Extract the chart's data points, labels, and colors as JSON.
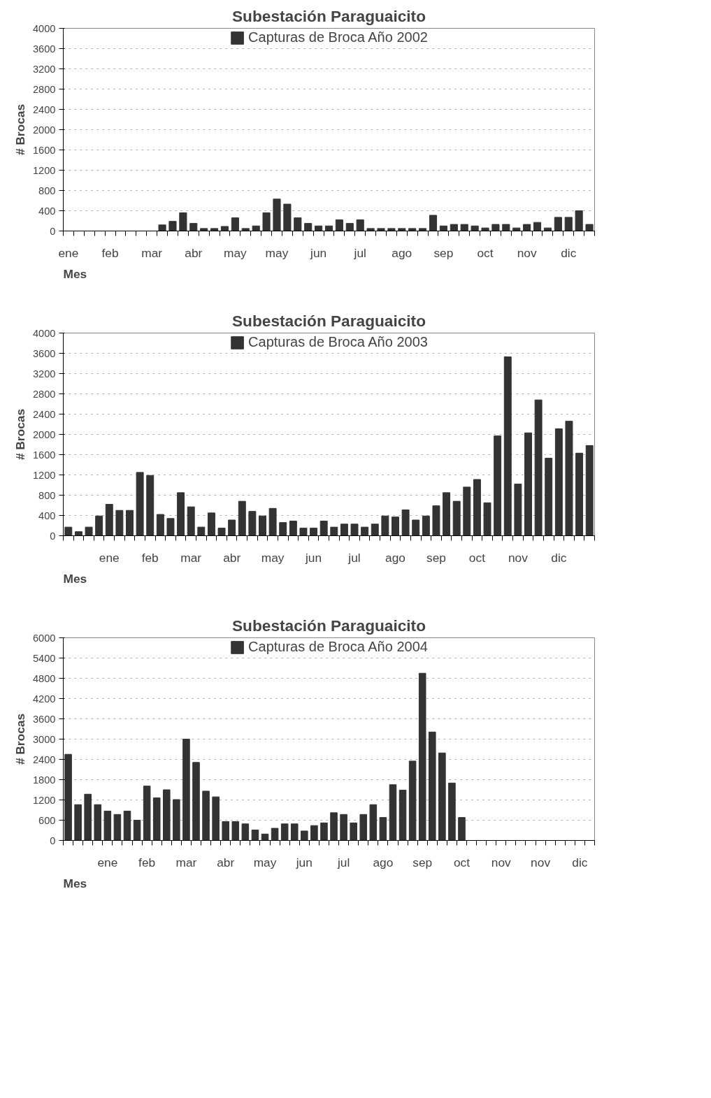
{
  "chart_data": [
    {
      "type": "bar",
      "title": "Subestación Paraguaicito",
      "xlabel": "Mes",
      "ylabel": "# Brocas",
      "legend": "top",
      "grid": "y",
      "categories": [
        "ene",
        null,
        null,
        null,
        "feb",
        null,
        null,
        null,
        "mar",
        null,
        null,
        null,
        "abr",
        null,
        null,
        null,
        "may",
        null,
        null,
        null,
        "may",
        null,
        null,
        null,
        "jun",
        null,
        null,
        null,
        "jul",
        null,
        null,
        null,
        "ago",
        null,
        null,
        null,
        "sep",
        null,
        null,
        null,
        "oct",
        null,
        null,
        null,
        "nov",
        null,
        null,
        null,
        "dic",
        null,
        null
      ],
      "ylim": [
        0,
        4000
      ],
      "yticks": [
        0,
        400,
        800,
        1200,
        1600,
        2000,
        2400,
        2800,
        3200,
        3600,
        4000
      ],
      "series": [
        {
          "name": "Capturas de Broca Año 2002",
          "color": "#333333",
          "values": [
            null,
            null,
            null,
            null,
            null,
            null,
            null,
            null,
            null,
            120,
            190,
            360,
            150,
            50,
            50,
            90,
            260,
            50,
            100,
            360,
            630,
            530,
            260,
            150,
            100,
            100,
            220,
            150,
            220,
            50,
            50,
            50,
            50,
            50,
            50,
            310,
            100,
            130,
            130,
            100,
            60,
            130,
            130,
            60,
            130,
            170,
            60,
            270,
            270,
            400,
            130
          ]
        }
      ]
    },
    {
      "type": "bar",
      "title": "Subestación Paraguaicito",
      "xlabel": "Mes",
      "ylabel": "# Brocas",
      "legend": "top",
      "grid": "y",
      "categories": [
        null,
        null,
        null,
        null,
        "ene",
        null,
        null,
        null,
        "feb",
        null,
        null,
        null,
        "mar",
        null,
        null,
        null,
        "abr",
        null,
        null,
        null,
        "may",
        null,
        null,
        null,
        "jun",
        null,
        null,
        null,
        "jul",
        null,
        null,
        null,
        "ago",
        null,
        null,
        null,
        "sep",
        null,
        null,
        null,
        "oct",
        null,
        null,
        null,
        "nov",
        null,
        null,
        null,
        "dic",
        null,
        null,
        null
      ],
      "ylim": [
        0,
        4000
      ],
      "yticks": [
        0,
        400,
        800,
        1200,
        1600,
        2000,
        2400,
        2800,
        3200,
        3600,
        4000
      ],
      "series": [
        {
          "name": "Capturas de Broca Año 2003",
          "color": "#333333",
          "values": [
            170,
            80,
            170,
            390,
            620,
            500,
            500,
            1250,
            1190,
            420,
            340,
            850,
            570,
            170,
            450,
            150,
            310,
            680,
            480,
            390,
            540,
            260,
            290,
            150,
            150,
            290,
            170,
            230,
            230,
            170,
            230,
            390,
            370,
            510,
            310,
            390,
            590,
            850,
            680,
            960,
            1110,
            650,
            1970,
            3530,
            1020,
            2030,
            2680,
            1530,
            2110,
            2260,
            1630,
            1780
          ]
        }
      ]
    },
    {
      "type": "bar",
      "title": "Subestación Paraguaicito",
      "xlabel": "Mes",
      "ylabel": "# Brocas",
      "legend": "top",
      "grid": "y",
      "categories": [
        null,
        null,
        null,
        null,
        "ene",
        null,
        null,
        null,
        "feb",
        null,
        null,
        null,
        "mar",
        null,
        null,
        null,
        "abr",
        null,
        null,
        null,
        "may",
        null,
        null,
        null,
        "jun",
        null,
        null,
        null,
        "jul",
        null,
        null,
        null,
        "ago",
        null,
        null,
        null,
        "sep",
        null,
        null,
        null,
        "oct",
        null,
        null,
        null,
        "nov",
        null,
        null,
        null,
        "nov",
        null,
        null,
        null,
        "dic",
        null
      ],
      "ylim": [
        0,
        6000
      ],
      "yticks": [
        0,
        600,
        1200,
        1800,
        2400,
        3000,
        3600,
        4200,
        4800,
        5400,
        6000
      ],
      "series": [
        {
          "name": "Capturas de Broca Año 2004",
          "color": "#333333",
          "values": [
            2550,
            1060,
            1370,
            1060,
            870,
            770,
            870,
            600,
            1610,
            1260,
            1500,
            1210,
            3000,
            2310,
            1460,
            1290,
            560,
            560,
            490,
            310,
            190,
            360,
            490,
            490,
            280,
            440,
            520,
            820,
            770,
            520,
            770,
            1060,
            680,
            1650,
            1490,
            2350,
            4950,
            3210,
            2590,
            1700,
            680,
            null,
            null,
            null,
            null,
            null,
            null,
            null,
            null,
            null,
            null,
            null,
            null,
            null
          ]
        }
      ]
    }
  ]
}
